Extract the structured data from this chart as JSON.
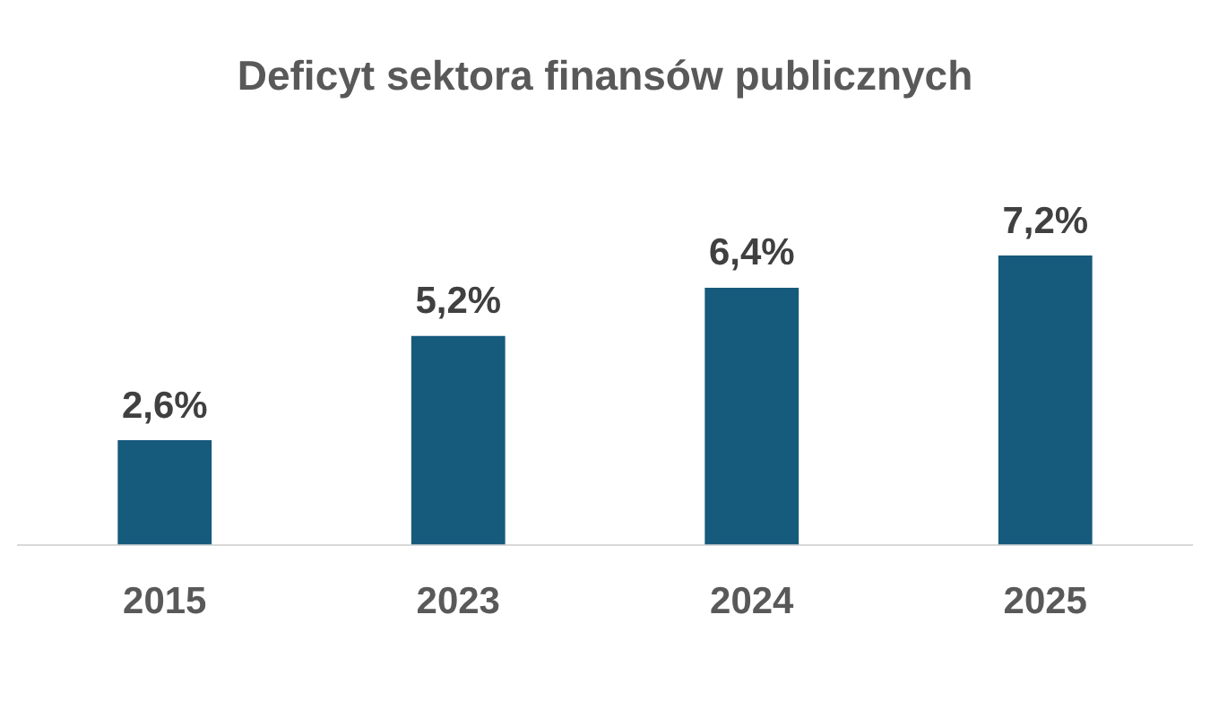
{
  "chart_data": {
    "type": "bar",
    "title": "Deficyt sektora finansów publicznych",
    "categories": [
      "2015",
      "2023",
      "2024",
      "2025"
    ],
    "values": [
      2.6,
      5.2,
      6.4,
      7.2
    ],
    "value_labels": [
      "2,6%",
      "5,2%",
      "6,4%",
      "7,2%"
    ],
    "color": "#165a7c",
    "grid": false,
    "legend": false
  }
}
